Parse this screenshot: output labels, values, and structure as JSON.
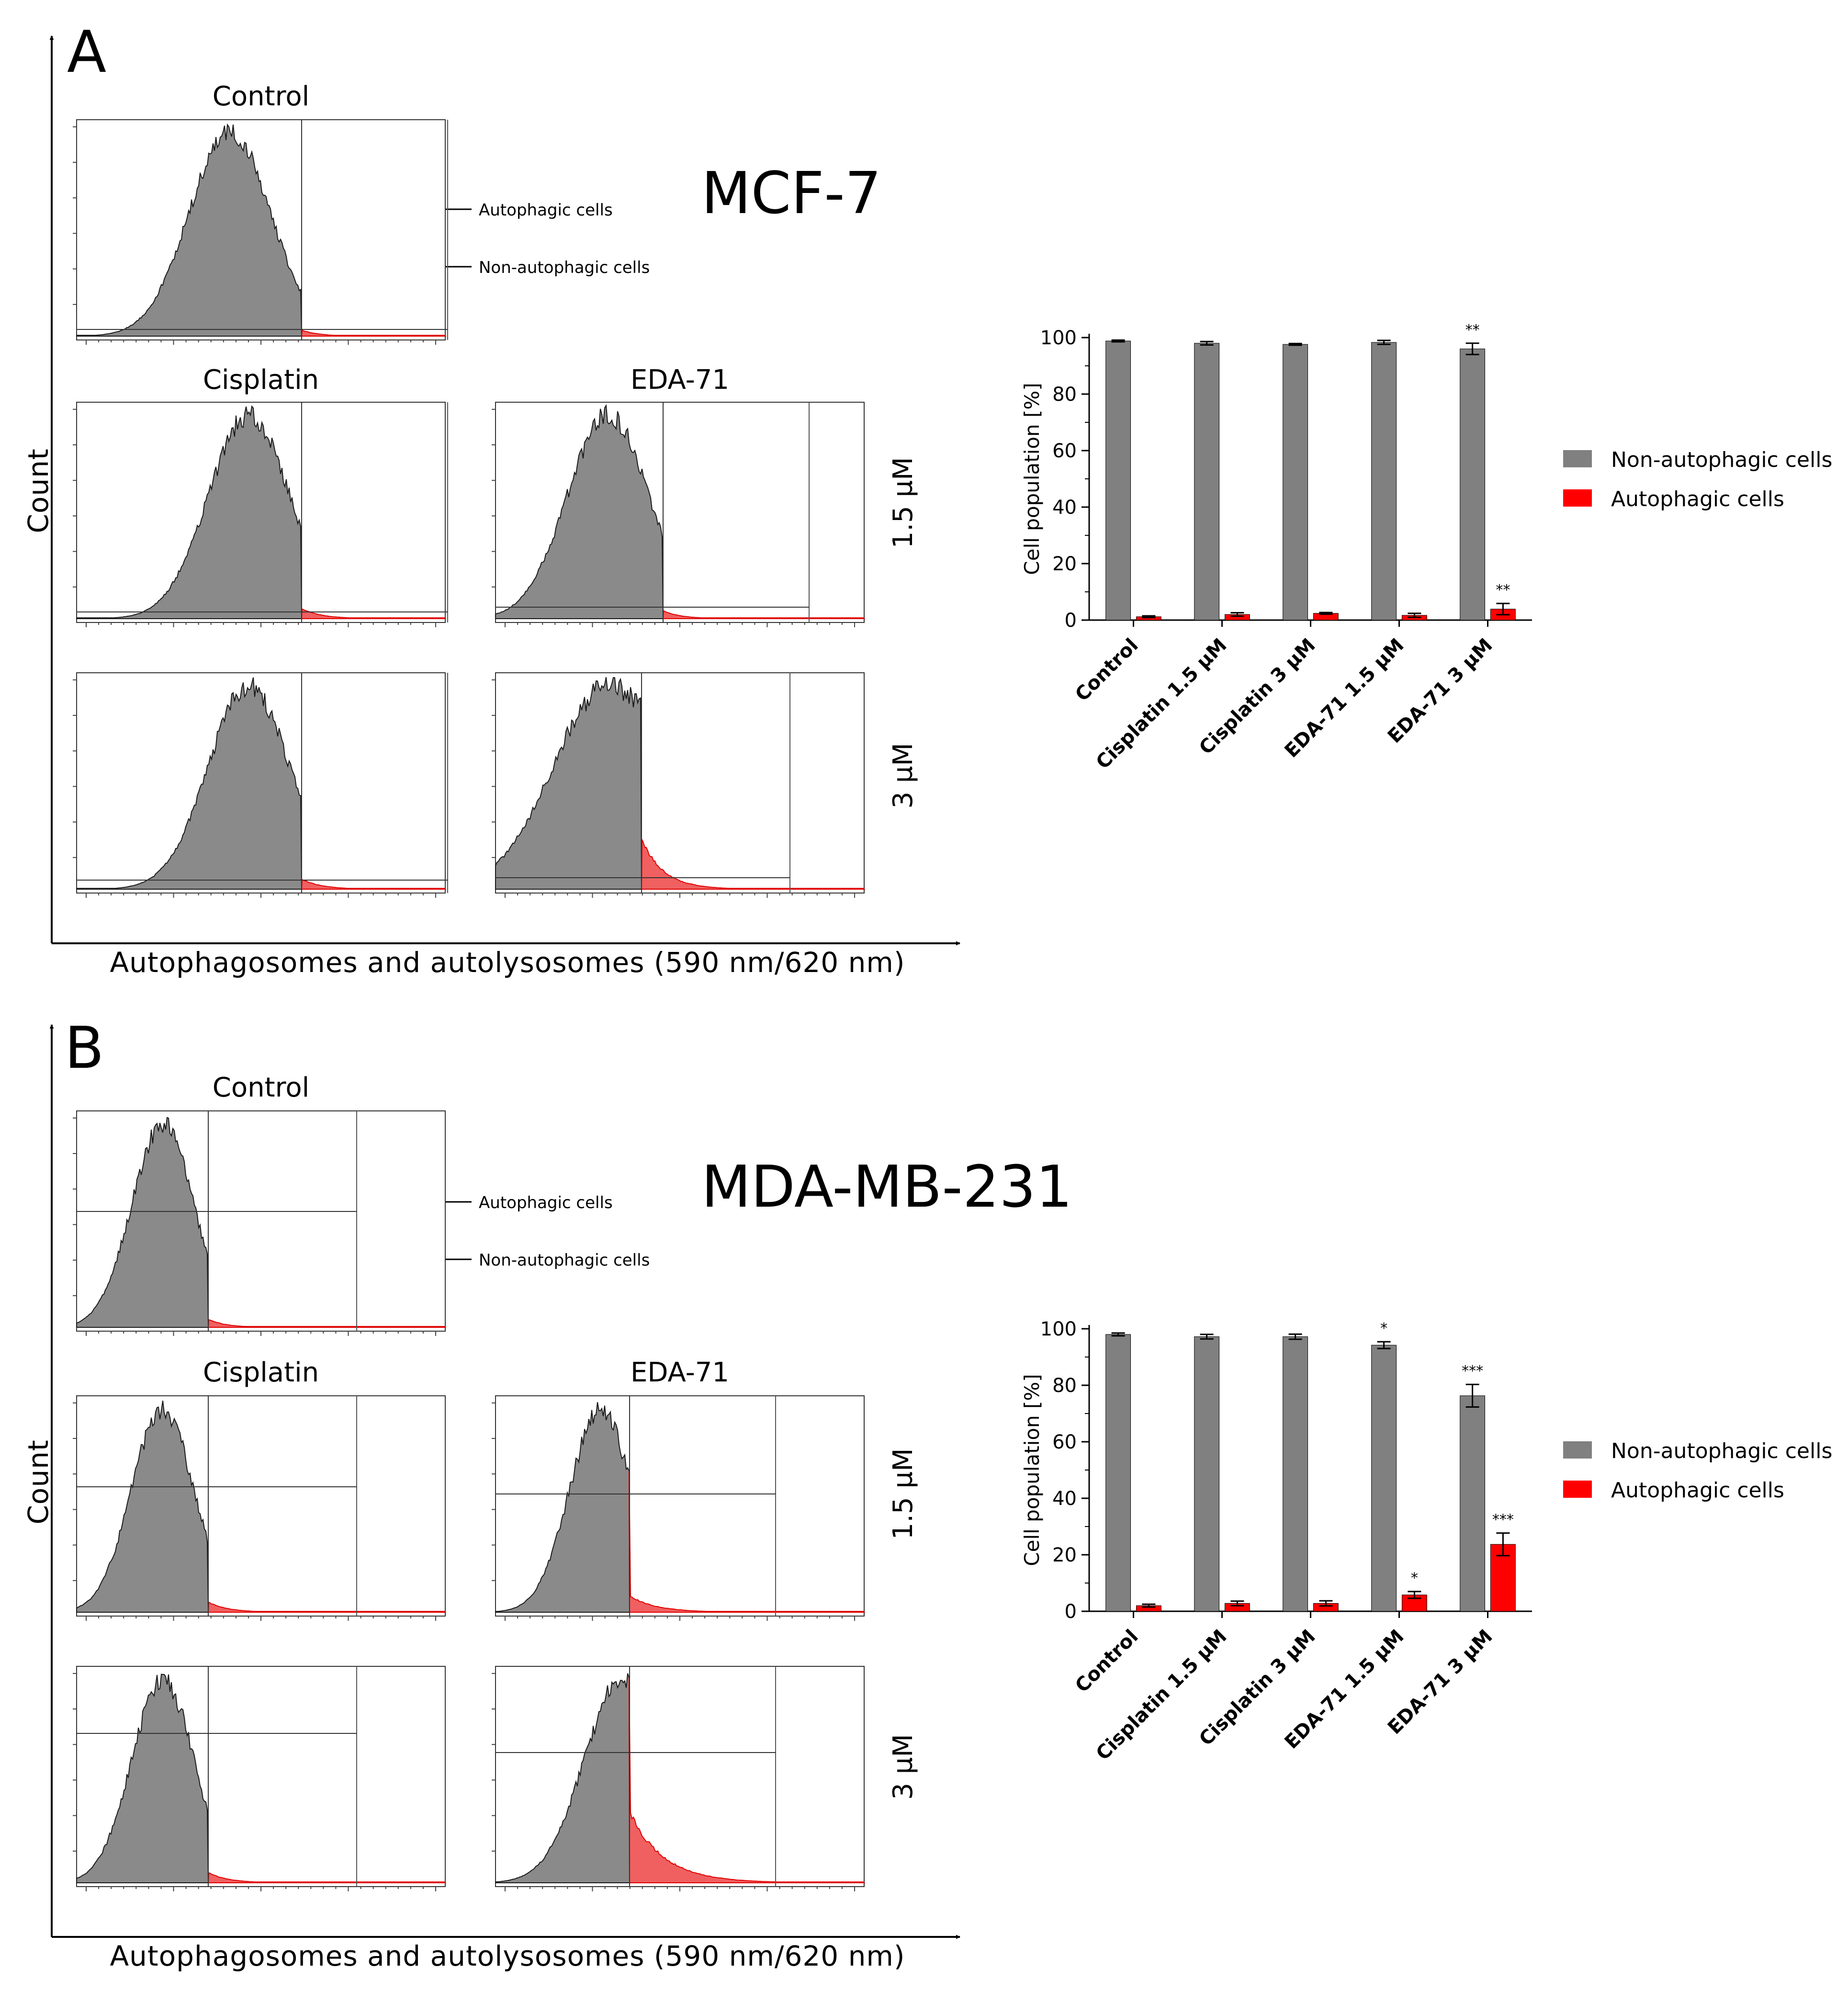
{
  "panels": [
    {
      "letter": "A",
      "cell_line": "MCF-7",
      "histogram_grid": {
        "column_titles": [
          "Control",
          "Cisplatin",
          "EDA-71"
        ],
        "row_labels": [
          "1.5 µM",
          "3 µM"
        ],
        "y_axis_title": "Count",
        "x_axis_title": "Autophagosomes and autolysosomes (590 nm/620 nm)",
        "annotations": [
          "Autophagic cells",
          "Non-autophagic cells"
        ],
        "colors": {
          "non_autophagic": "#8a8a8a",
          "autophagic": "#f03c3c"
        }
      },
      "chart_data": {
        "type": "bar",
        "categories": [
          "Control",
          "Cisplatin 1.5 µM",
          "Cisplatin 3 µM",
          "EDA-71 1.5 µM",
          "EDA-71 3 µM"
        ],
        "series": [
          {
            "name": "Non-autophagic cells",
            "color": "#808080",
            "values": [
              98.8,
              98.0,
              97.6,
              98.3,
              96.0
            ],
            "errors": [
              0.3,
              0.6,
              0.3,
              0.7,
              2.0
            ],
            "significance": [
              "",
              "",
              "",
              "",
              "**"
            ]
          },
          {
            "name": "Autophagic cells",
            "color": "#ff0000",
            "values": [
              1.2,
              2.0,
              2.4,
              1.7,
              3.9
            ],
            "errors": [
              0.3,
              0.6,
              0.3,
              0.7,
              2.0
            ],
            "significance": [
              "",
              "",
              "",
              "",
              "**"
            ]
          }
        ],
        "ylabel": "Cell population [%]",
        "ylim": [
          0,
          100
        ],
        "yticks": [
          0,
          20,
          40,
          60,
          80,
          100
        ],
        "legend": "right"
      }
    },
    {
      "letter": "B",
      "cell_line": "MDA-MB-231",
      "histogram_grid": {
        "column_titles": [
          "Control",
          "Cisplatin",
          "EDA-71"
        ],
        "row_labels": [
          "1.5 µM",
          "3 µM"
        ],
        "y_axis_title": "Count",
        "x_axis_title": "Autophagosomes and autolysosomes (590 nm/620 nm)",
        "annotations": [
          "Autophagic cells",
          "Non-autophagic cells"
        ],
        "colors": {
          "non_autophagic": "#8a8a8a",
          "autophagic": "#f03c3c"
        }
      },
      "chart_data": {
        "type": "bar",
        "categories": [
          "Control",
          "Cisplatin 1.5 µM",
          "Cisplatin 3 µM",
          "EDA-71 1.5 µM",
          "EDA-71 3 µM"
        ],
        "series": [
          {
            "name": "Non-autophagic cells",
            "color": "#808080",
            "values": [
              98.0,
              97.2,
              97.2,
              94.2,
              76.3
            ],
            "errors": [
              0.5,
              0.8,
              0.9,
              1.2,
              4.0
            ],
            "significance": [
              "",
              "",
              "",
              "*",
              "***"
            ]
          },
          {
            "name": "Autophagic cells",
            "color": "#ff0000",
            "values": [
              2.0,
              2.8,
              2.8,
              5.8,
              23.7
            ],
            "errors": [
              0.5,
              0.8,
              0.9,
              1.2,
              4.0
            ],
            "significance": [
              "",
              "",
              "",
              "*",
              "***"
            ]
          }
        ],
        "ylabel": "Cell population [%]",
        "ylim": [
          0,
          100
        ],
        "yticks": [
          0,
          20,
          40,
          60,
          80,
          100
        ],
        "legend": "right"
      }
    }
  ]
}
